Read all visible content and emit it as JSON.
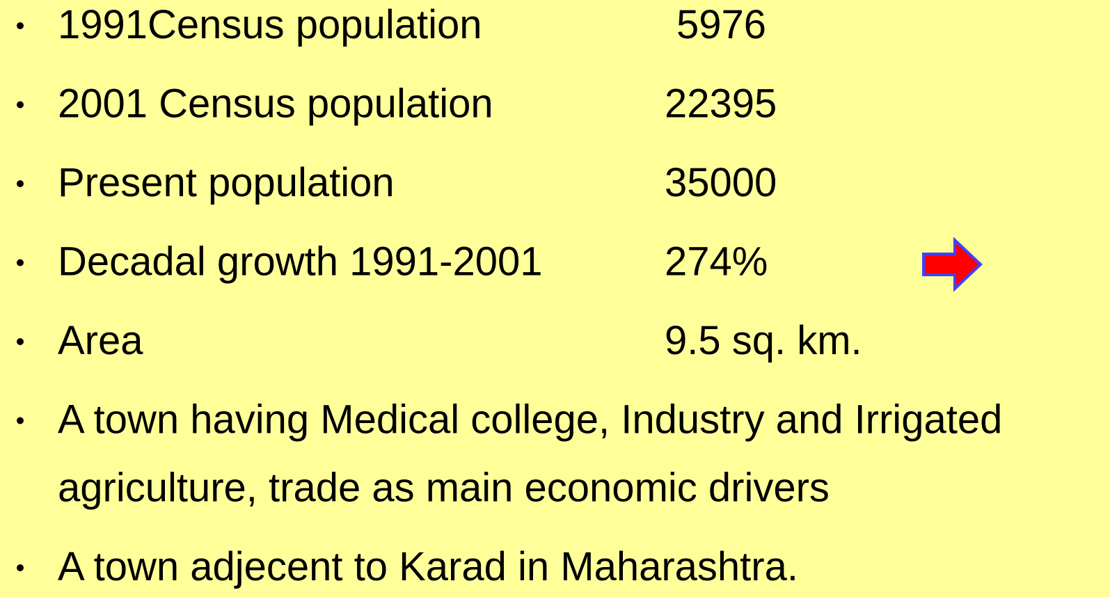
{
  "items": [
    {
      "label": "1991Census population",
      "value": "5976"
    },
    {
      "label": "2001 Census population",
      "value": "22395"
    },
    {
      "label": "Present population",
      "value": "35000"
    },
    {
      "label": "Decadal growth 1991-2001",
      "value": "274%"
    },
    {
      "label": "Area",
      "value": "9.5 sq. km."
    }
  ],
  "notes": [
    {
      "lines": [
        "A town having Medical college, Industry and Irrigated",
        "agriculture, trade as main economic drivers"
      ]
    },
    {
      "lines": [
        "A town adjecent to Karad in Maharashtra."
      ]
    }
  ]
}
